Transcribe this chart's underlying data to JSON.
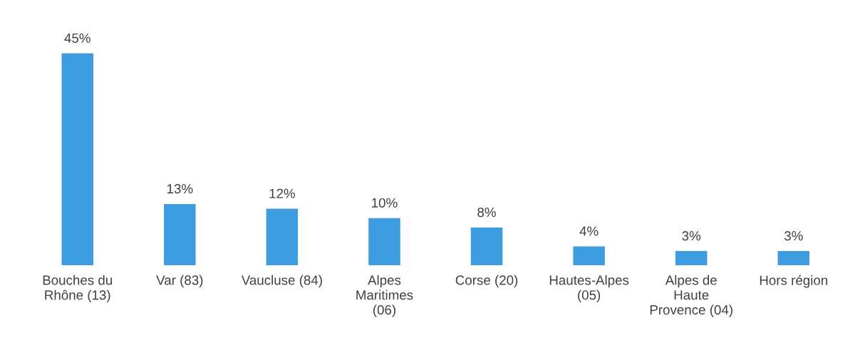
{
  "chart_data": {
    "type": "bar",
    "categories": [
      "Bouches du\nRhône (13)",
      "Var (83)",
      "Vaucluse (84)",
      "Alpes\nMaritimes\n(06)",
      "Corse (20)",
      "Hautes-Alpes\n(05)",
      "Alpes de\nHaute\nProvence (04)",
      "Hors région"
    ],
    "values": [
      45,
      13,
      12,
      10,
      8,
      4,
      3,
      3
    ],
    "color": "#3d9de0",
    "value_labels": [
      "45%",
      "13%",
      "12%",
      "10%",
      "8%",
      "4%",
      "3%",
      "3%"
    ]
  }
}
